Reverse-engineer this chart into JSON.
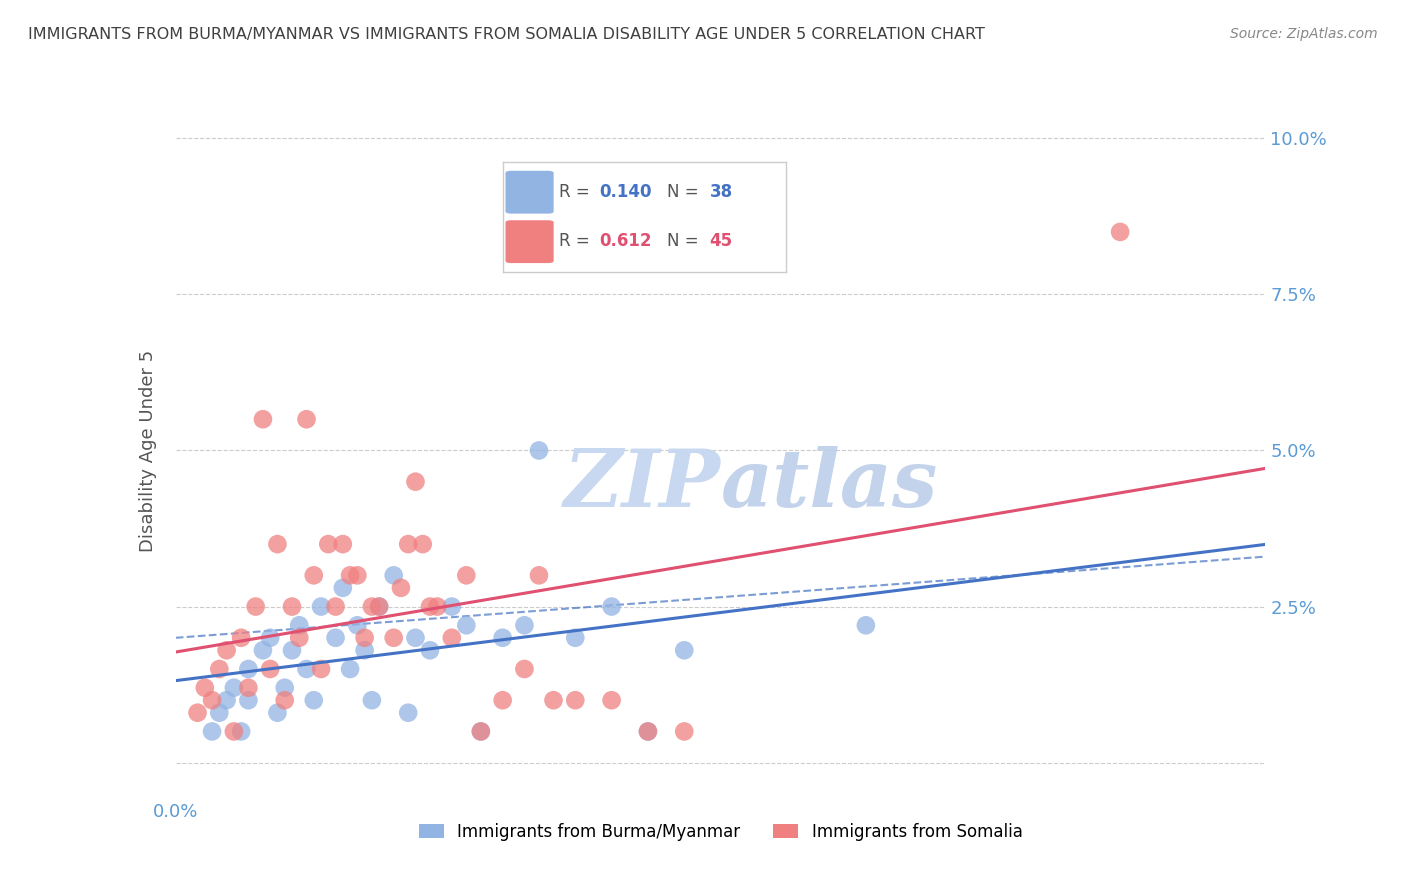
{
  "title": "IMMIGRANTS FROM BURMA/MYANMAR VS IMMIGRANTS FROM SOMALIA DISABILITY AGE UNDER 5 CORRELATION CHART",
  "source": "Source: ZipAtlas.com",
  "ylabel": "Disability Age Under 5",
  "xlim": [
    0.0,
    0.15
  ],
  "ylim": [
    -0.005,
    0.105
  ],
  "yticks": [
    0.0,
    0.025,
    0.05,
    0.075,
    0.1
  ],
  "ytick_labels": [
    "",
    "2.5%",
    "5.0%",
    "7.5%",
    "10.0%"
  ],
  "legend_r1": "0.140",
  "legend_n1": "38",
  "legend_r2": "0.612",
  "legend_n2": "45",
  "color_burma": "#92b4e3",
  "color_somalia": "#f08080",
  "color_burma_line": "#4472c4",
  "color_somalia_line": "#e05070",
  "color_axis_labels": "#5b9bd5",
  "color_title": "#404040",
  "watermark_color": "#c8d8f0",
  "burma_x": [
    0.005,
    0.006,
    0.007,
    0.008,
    0.009,
    0.01,
    0.01,
    0.012,
    0.013,
    0.014,
    0.015,
    0.016,
    0.017,
    0.018,
    0.019,
    0.02,
    0.022,
    0.023,
    0.024,
    0.025,
    0.026,
    0.027,
    0.028,
    0.03,
    0.032,
    0.033,
    0.035,
    0.038,
    0.04,
    0.042,
    0.045,
    0.048,
    0.05,
    0.055,
    0.06,
    0.065,
    0.07,
    0.095
  ],
  "burma_y": [
    0.005,
    0.008,
    0.01,
    0.012,
    0.005,
    0.01,
    0.015,
    0.018,
    0.02,
    0.008,
    0.012,
    0.018,
    0.022,
    0.015,
    0.01,
    0.025,
    0.02,
    0.028,
    0.015,
    0.022,
    0.018,
    0.01,
    0.025,
    0.03,
    0.008,
    0.02,
    0.018,
    0.025,
    0.022,
    0.005,
    0.02,
    0.022,
    0.05,
    0.02,
    0.025,
    0.005,
    0.018,
    0.022
  ],
  "somalia_x": [
    0.003,
    0.004,
    0.005,
    0.006,
    0.007,
    0.008,
    0.009,
    0.01,
    0.011,
    0.012,
    0.013,
    0.014,
    0.015,
    0.016,
    0.017,
    0.018,
    0.019,
    0.02,
    0.021,
    0.022,
    0.023,
    0.024,
    0.025,
    0.026,
    0.027,
    0.028,
    0.03,
    0.031,
    0.032,
    0.033,
    0.034,
    0.035,
    0.036,
    0.038,
    0.04,
    0.042,
    0.045,
    0.048,
    0.05,
    0.052,
    0.055,
    0.06,
    0.065,
    0.07,
    0.13
  ],
  "somalia_y": [
    0.008,
    0.012,
    0.01,
    0.015,
    0.018,
    0.005,
    0.02,
    0.012,
    0.025,
    0.055,
    0.015,
    0.035,
    0.01,
    0.025,
    0.02,
    0.055,
    0.03,
    0.015,
    0.035,
    0.025,
    0.035,
    0.03,
    0.03,
    0.02,
    0.025,
    0.025,
    0.02,
    0.028,
    0.035,
    0.045,
    0.035,
    0.025,
    0.025,
    0.02,
    0.03,
    0.005,
    0.01,
    0.015,
    0.03,
    0.01,
    0.01,
    0.01,
    0.005,
    0.005,
    0.085
  ]
}
